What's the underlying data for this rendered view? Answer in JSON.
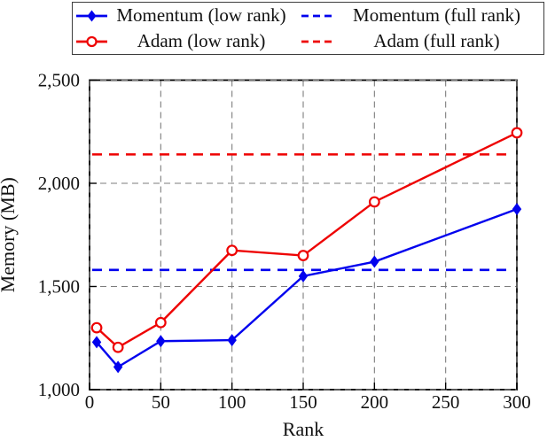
{
  "legend": {
    "items": [
      {
        "label": "Momentum (low rank)",
        "color": "#0202ee",
        "line": "solid",
        "marker": "diamond"
      },
      {
        "label": "Momentum (full rank)",
        "color": "#0202ee",
        "line": "dashed",
        "marker": "none"
      },
      {
        "label": "Adam (low rank)",
        "color": "#ee0202",
        "line": "solid",
        "marker": "circle"
      },
      {
        "label": "Adam (full rank)",
        "color": "#ee0202",
        "line": "dashed",
        "marker": "none"
      }
    ]
  },
  "chart_data": {
    "type": "line",
    "title": "",
    "xlabel": "Rank",
    "ylabel": "Memory (MB)",
    "xlim": [
      0,
      300
    ],
    "ylim": [
      1000,
      2500
    ],
    "x": [
      5,
      20,
      50,
      100,
      150,
      200,
      300
    ],
    "series": [
      {
        "name": "Momentum (low rank)",
        "color": "#0202ee",
        "line": "solid",
        "marker": "diamond",
        "values": [
          1230,
          1110,
          1235,
          1240,
          1550,
          1620,
          1875
        ]
      },
      {
        "name": "Adam (low rank)",
        "color": "#ee0202",
        "line": "solid",
        "marker": "circle-open",
        "values": [
          1300,
          1205,
          1325,
          1675,
          1650,
          1910,
          2245
        ]
      }
    ],
    "reference_lines": [
      {
        "name": "Momentum (full rank)",
        "color": "#0202ee",
        "line": "dashed",
        "value": 1580
      },
      {
        "name": "Adam (full rank)",
        "color": "#ee0202",
        "line": "dashed",
        "value": 2140
      }
    ],
    "xticks": [
      0,
      50,
      100,
      150,
      200,
      250,
      300
    ],
    "xtick_labels": [
      "0",
      "50",
      "100",
      "150",
      "200",
      "250",
      "300"
    ],
    "yticks": [
      1000,
      1500,
      2000,
      2500
    ],
    "ytick_labels": [
      "1,000",
      "1,500",
      "2,000",
      "2,500"
    ],
    "grid": "dashed",
    "grid_color": "#7d7d7d",
    "axis_color": "#000000",
    "background": "#ffffff",
    "legend_position": "top-outside"
  }
}
